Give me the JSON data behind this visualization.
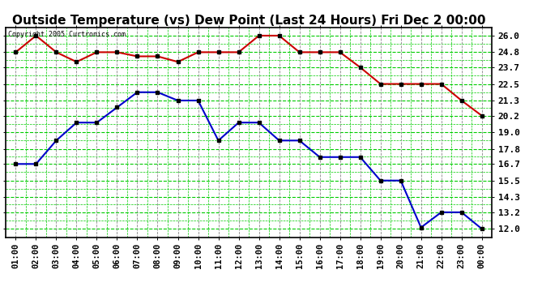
{
  "title": "Outside Temperature (vs) Dew Point (Last 24 Hours) Fri Dec 2 00:00",
  "copyright": "Copyright 2005 Curtronics.com",
  "background_color": "#ffffff",
  "plot_bg_color": "#ffffff",
  "grid_h_color": "#00cc00",
  "grid_v_color": "#888888",
  "x_labels": [
    "01:00",
    "02:00",
    "03:00",
    "04:00",
    "05:00",
    "06:00",
    "07:00",
    "08:00",
    "09:00",
    "10:00",
    "11:00",
    "12:00",
    "13:00",
    "14:00",
    "15:00",
    "16:00",
    "17:00",
    "18:00",
    "19:00",
    "20:00",
    "21:00",
    "22:00",
    "23:00",
    "00:00"
  ],
  "temp_color": "#cc0000",
  "dew_color": "#0000cc",
  "temp_data": [
    24.8,
    26.0,
    24.8,
    24.1,
    24.8,
    24.8,
    24.5,
    24.5,
    24.1,
    24.8,
    24.8,
    24.8,
    26.0,
    26.0,
    24.8,
    24.8,
    24.8,
    23.7,
    22.5,
    22.5,
    22.5,
    22.5,
    21.3,
    20.2
  ],
  "dew_data": [
    16.7,
    16.7,
    18.4,
    19.7,
    19.7,
    20.8,
    21.9,
    21.9,
    21.3,
    21.3,
    18.4,
    19.7,
    19.7,
    18.4,
    18.4,
    17.2,
    17.2,
    17.2,
    15.5,
    15.5,
    12.1,
    13.2,
    13.2,
    12.0
  ],
  "y_ticks": [
    12.0,
    13.2,
    14.3,
    15.5,
    16.7,
    17.8,
    19.0,
    20.2,
    21.3,
    22.5,
    23.7,
    24.8,
    26.0
  ],
  "ylim": [
    11.4,
    26.6
  ],
  "marker_size": 3,
  "line_width": 1.5,
  "title_fontsize": 11,
  "tick_fontsize": 7.5,
  "ytick_fontsize": 8
}
